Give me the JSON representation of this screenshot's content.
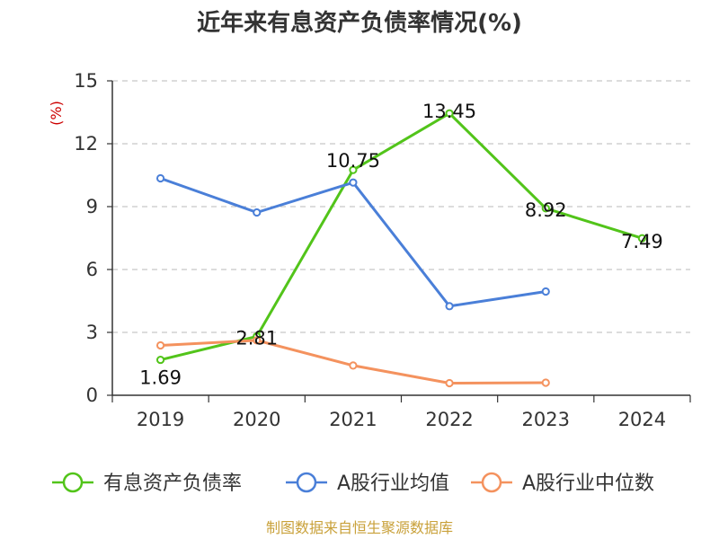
{
  "chart_data": {
    "type": "line",
    "title": "近年来有息资产负债率情况(%)",
    "ylabel": "(%)",
    "categories": [
      "2019",
      "2020",
      "2021",
      "2022",
      "2023",
      "2024"
    ],
    "ylim": [
      0,
      15
    ],
    "yticks": [
      "0",
      "3",
      "6",
      "9",
      "12",
      "15"
    ],
    "grid": true,
    "legend_position": "bottom",
    "series": [
      {
        "name": "有息资产负债率",
        "color": "#52c41a",
        "values": [
          1.69,
          2.81,
          10.75,
          13.45,
          8.92,
          7.49
        ],
        "labels": [
          "1.69",
          "2.81",
          "10.75",
          "13.45",
          "8.92",
          "7.49"
        ]
      },
      {
        "name": "A股行业均值",
        "color": "#4a7fd8",
        "values": [
          10.35,
          8.72,
          10.15,
          4.25,
          4.95,
          null
        ]
      },
      {
        "name": "A股行业中位数",
        "color": "#f4925e",
        "values": [
          2.38,
          2.62,
          1.42,
          0.58,
          0.6,
          null
        ]
      }
    ]
  },
  "source": "制图数据来自恒生聚源数据库"
}
